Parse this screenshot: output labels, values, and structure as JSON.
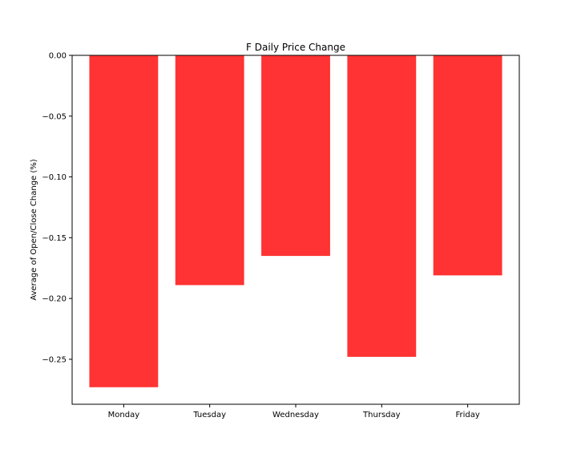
{
  "chart_data": {
    "type": "bar",
    "title": "F Daily Price Change",
    "xlabel": "",
    "ylabel": "Average of Open/Close Change (%)",
    "categories": [
      "Monday",
      "Tuesday",
      "Wednesday",
      "Thursday",
      "Friday"
    ],
    "values": [
      -0.273,
      -0.189,
      -0.165,
      -0.248,
      -0.181
    ],
    "ylim": [
      -0.287,
      0.0
    ],
    "yticks": [
      0.0,
      -0.05,
      -0.1,
      -0.15,
      -0.2,
      -0.25
    ],
    "ytick_labels": [
      "0.00",
      "−0.05",
      "−0.10",
      "−0.15",
      "−0.20",
      "−0.25"
    ],
    "bar_color": "#ff3333",
    "grid": false,
    "legend": "none"
  }
}
